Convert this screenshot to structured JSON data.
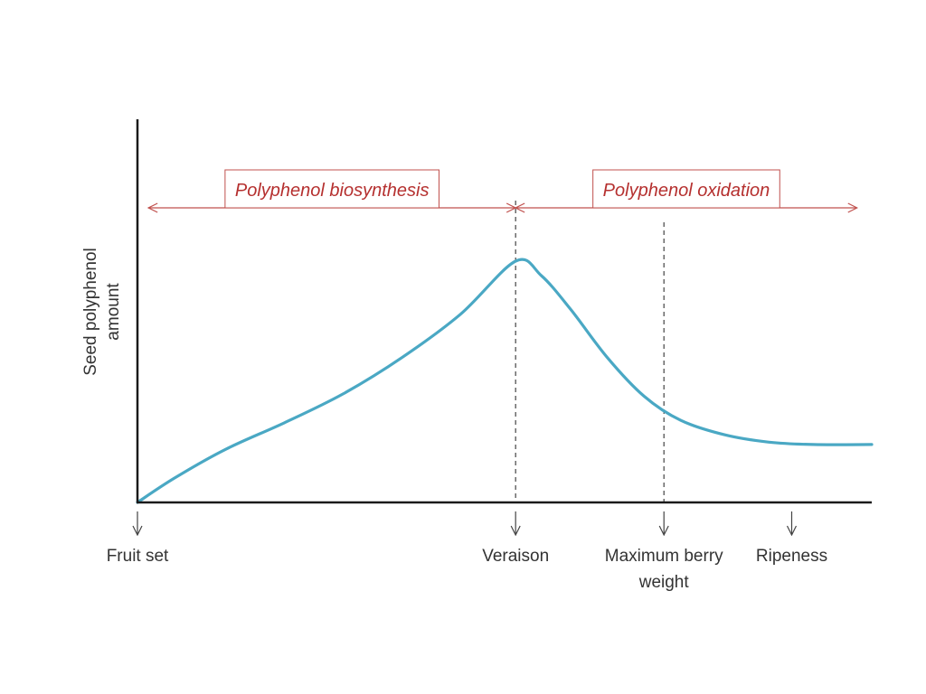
{
  "chart_data": {
    "type": "line",
    "title": "",
    "xlabel": "",
    "ylabel_lines": [
      "Seed polyphenol",
      "amount"
    ],
    "xlim": [
      0,
      100
    ],
    "ylim": [
      0,
      100
    ],
    "grid": false,
    "line_color": "#4aa8c4",
    "axis_color": "#1a1a1a",
    "annotation_color": "#c0504d",
    "series": [
      {
        "x": [
          0,
          5,
          12,
          20,
          28,
          36,
          44,
          51.5,
          55,
          59,
          64,
          69,
          74,
          80,
          86,
          92,
          100
        ],
        "values": [
          0,
          10,
          22,
          33,
          45,
          60,
          78,
          100,
          94,
          80,
          60,
          44,
          34,
          28,
          25,
          24,
          24
        ]
      }
    ],
    "stages": [
      {
        "lines": [
          "Fruit set"
        ],
        "x": 0
      },
      {
        "lines": [
          "Veraison"
        ],
        "x": 51.5
      },
      {
        "lines": [
          "Maximum berry",
          "weight"
        ],
        "x": 71.7
      },
      {
        "lines": [
          "Ripeness"
        ],
        "x": 89.1
      }
    ],
    "vlines": [
      51.5,
      71.7
    ],
    "phases": [
      {
        "label": "Polyphenol biosynthesis",
        "x_start": 1.5,
        "x_end": 51.5
      },
      {
        "label": "Polyphenol oxidation",
        "x_start": 51.5,
        "x_end": 98
      }
    ]
  }
}
